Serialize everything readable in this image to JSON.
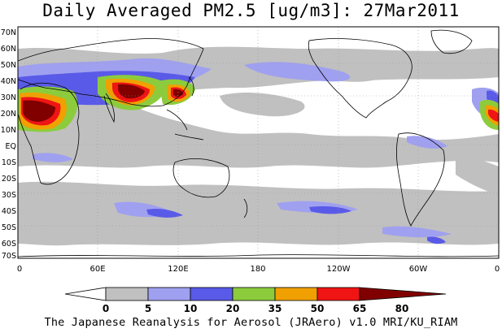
{
  "title": "Daily Averaged PM2.5 [ug/m3]: 27Mar2011",
  "credit": "The Japanese Reanalysis for Aerosol (JRAero) v1.0 MRI/KU_RIAM",
  "axes": {
    "lat_labels": [
      "70N",
      "60N",
      "50N",
      "40N",
      "30N",
      "20N",
      "10N",
      "EQ",
      "10S",
      "20S",
      "30S",
      "40S",
      "50S",
      "60S",
      "70S"
    ],
    "lon_labels": [
      "0",
      "60E",
      "120E",
      "180",
      "120W",
      "60W",
      "0"
    ]
  },
  "legend": {
    "thresholds": [
      "0",
      "5",
      "10",
      "20",
      "35",
      "50",
      "65",
      "80"
    ],
    "colors": [
      "#ffffff",
      "#c0c0c0",
      "#a0a0f0",
      "#5a5ae8",
      "#8ccc3c",
      "#f0a000",
      "#f01414",
      "#800000"
    ]
  },
  "colors": {
    "frame": "#000000",
    "grid": "#999999",
    "coast": "#000000"
  }
}
